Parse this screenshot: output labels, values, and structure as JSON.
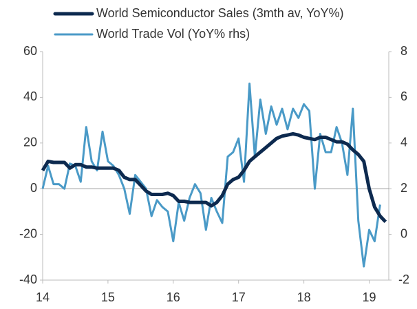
{
  "chart_data": {
    "type": "line",
    "x": [
      14,
      14.083,
      14.167,
      14.25,
      14.333,
      14.417,
      14.5,
      14.583,
      14.667,
      14.75,
      14.833,
      14.917,
      15,
      15.083,
      15.167,
      15.25,
      15.333,
      15.417,
      15.5,
      15.583,
      15.667,
      15.75,
      15.833,
      15.917,
      16,
      16.083,
      16.167,
      16.25,
      16.333,
      16.417,
      16.5,
      16.583,
      16.667,
      16.75,
      16.833,
      16.917,
      17,
      17.083,
      17.167,
      17.25,
      17.333,
      17.417,
      17.5,
      17.583,
      17.667,
      17.75,
      17.833,
      17.917,
      18,
      18.083,
      18.167,
      18.25,
      18.333,
      18.417,
      18.5,
      18.583,
      18.667,
      18.75,
      18.833,
      18.917,
      19,
      19.083,
      19.167,
      19.25
    ],
    "series": [
      {
        "name": "World Semiconductor Sales (3mth av, YoY%)",
        "color": "#0d2a4f",
        "values": [
          8,
          12,
          11.5,
          11.5,
          11.5,
          9,
          10.5,
          10.5,
          9.5,
          9.5,
          9,
          9,
          9,
          9,
          8,
          5,
          4,
          4,
          1.5,
          -1,
          -2.5,
          -2.5,
          -2.5,
          -2,
          -3,
          -5.5,
          -5.5,
          -6,
          -6,
          -6,
          -6,
          -7.5,
          -6,
          -3,
          2,
          4,
          5,
          8,
          12,
          14,
          16,
          18,
          20,
          22,
          23,
          23.5,
          24,
          23.5,
          22.5,
          22,
          21.5,
          22.5,
          22.5,
          21.5,
          20.5,
          20.5,
          19.5,
          17,
          15,
          12,
          0,
          -8,
          -12,
          -14.5
        ]
      },
      {
        "name": "World Trade Vol (YoY% rhs)",
        "color": "#4a9ac7",
        "axis": "y2",
        "values": [
          2.0,
          3.0,
          2.2,
          2.2,
          2.0,
          3.1,
          3.0,
          2.3,
          4.7,
          3.2,
          2.8,
          4.5,
          3.2,
          3.0,
          2.6,
          2.0,
          0.9,
          2.6,
          2.3,
          2.0,
          0.8,
          1.5,
          1.2,
          1.0,
          -0.3,
          1.4,
          0.6,
          1.6,
          2.2,
          1.8,
          0.2,
          1.6,
          1.0,
          0.5,
          3.4,
          3.6,
          4.2,
          2.3,
          6.6,
          3.4,
          5.9,
          4.4,
          5.6,
          4.8,
          5.5,
          4.6,
          5.5,
          5.1,
          5.7,
          5.4,
          2.0,
          4.4,
          3.6,
          3.6,
          4.7,
          4.0,
          2.6,
          5.5,
          0.6,
          -1.4,
          0.2,
          -0.3,
          1.3,
          null
        ]
      }
    ],
    "xlim": [
      14,
      19.3
    ],
    "xticks": [
      14,
      15,
      16,
      17,
      18,
      19
    ],
    "ylim": [
      -40,
      60
    ],
    "yticks": [
      -40,
      -20,
      0,
      20,
      40,
      60
    ],
    "y2lim": [
      -2,
      8
    ],
    "y2ticks": [
      -2,
      0,
      2,
      4,
      6,
      8
    ],
    "legend": "top"
  }
}
